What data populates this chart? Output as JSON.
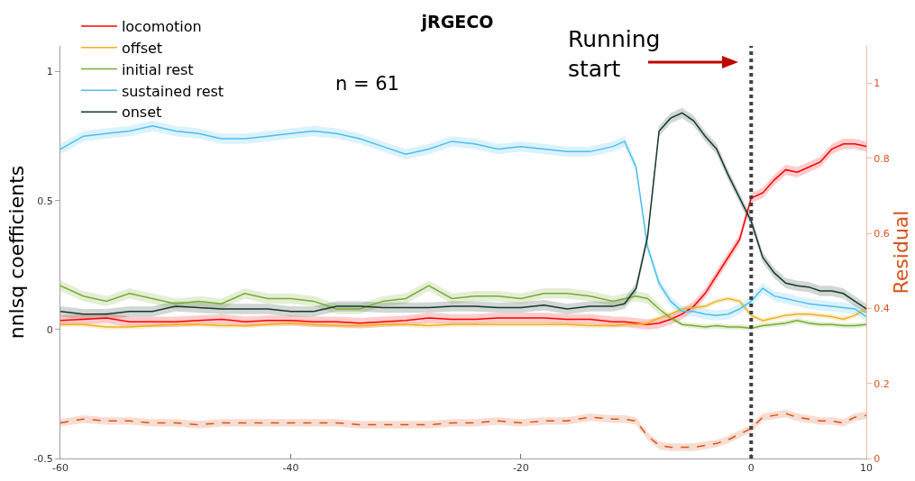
{
  "chart_data": {
    "type": "line",
    "title": "jRGECO",
    "ylabel": "nnlsq coefficients",
    "y2label": "Residual",
    "annotations": [
      "n = 61",
      "Running start"
    ],
    "x": [
      -60,
      -58,
      -56,
      -54,
      -52,
      -50,
      -48,
      -46,
      -44,
      -42,
      -40,
      -38,
      -36,
      -34,
      -32,
      -30,
      -28,
      -26,
      -24,
      -22,
      -20,
      -18,
      -16,
      -14,
      -12,
      -11,
      -10,
      -9,
      -8,
      -7,
      -6,
      -5,
      -4,
      -3,
      -2,
      -1,
      0,
      1,
      2,
      3,
      4,
      5,
      6,
      7,
      8,
      9,
      10
    ],
    "xlim": [
      -60,
      10
    ],
    "xticks": [
      -60,
      -40,
      -20,
      0,
      10
    ],
    "ylim": [
      -0.5,
      1.1
    ],
    "yticks": [
      -0.5,
      0,
      0.5,
      1
    ],
    "y2lim": [
      0,
      1.1
    ],
    "y2ticks": [
      0,
      0.2,
      0.4,
      0.6,
      0.8,
      1
    ],
    "legend": "top left",
    "ref_lines": [
      {
        "axis": "x",
        "value": 0,
        "color": "#404040",
        "line_style": "dotted"
      }
    ],
    "series": [
      {
        "name": "locomotion",
        "color": "#ff0000",
        "values": [
          0.035,
          0.04,
          0.045,
          0.03,
          0.03,
          0.03,
          0.035,
          0.04,
          0.03,
          0.035,
          0.035,
          0.03,
          0.03,
          0.025,
          0.03,
          0.035,
          0.045,
          0.04,
          0.04,
          0.045,
          0.045,
          0.045,
          0.04,
          0.04,
          0.03,
          0.03,
          0.025,
          0.02,
          0.025,
          0.04,
          0.06,
          0.09,
          0.14,
          0.21,
          0.28,
          0.35,
          0.51,
          0.53,
          0.58,
          0.62,
          0.61,
          0.63,
          0.65,
          0.7,
          0.72,
          0.72,
          0.71
        ],
        "lower": [
          0.015,
          0.02,
          0.025,
          0.01,
          0.01,
          0.01,
          0.015,
          0.02,
          0.01,
          0.015,
          0.015,
          0.01,
          0.01,
          0.005,
          0.01,
          0.015,
          0.025,
          0.02,
          0.02,
          0.025,
          0.025,
          0.025,
          0.02,
          0.02,
          0.01,
          0.01,
          0.005,
          0,
          0.005,
          0.02,
          0.04,
          0.07,
          0.12,
          0.19,
          0.26,
          0.33,
          0.49,
          0.51,
          0.56,
          0.6,
          0.59,
          0.61,
          0.63,
          0.68,
          0.7,
          0.7,
          0.69
        ],
        "upper": [
          0.055,
          0.06,
          0.065,
          0.05,
          0.05,
          0.05,
          0.055,
          0.06,
          0.05,
          0.055,
          0.055,
          0.05,
          0.05,
          0.045,
          0.05,
          0.055,
          0.065,
          0.06,
          0.06,
          0.065,
          0.065,
          0.065,
          0.06,
          0.06,
          0.05,
          0.05,
          0.045,
          0.04,
          0.045,
          0.06,
          0.08,
          0.11,
          0.16,
          0.23,
          0.3,
          0.37,
          0.53,
          0.55,
          0.6,
          0.64,
          0.63,
          0.65,
          0.67,
          0.72,
          0.74,
          0.74,
          0.73
        ]
      },
      {
        "name": "offset",
        "color": "#edb120",
        "values": [
          0.02,
          0.02,
          0.01,
          0.01,
          0.015,
          0.02,
          0.02,
          0.015,
          0.015,
          0.02,
          0.025,
          0.02,
          0.015,
          0.015,
          0.02,
          0.02,
          0.015,
          0.02,
          0.02,
          0.02,
          0.02,
          0.02,
          0.02,
          0.015,
          0.015,
          0.02,
          0.02,
          0.025,
          0.045,
          0.06,
          0.08,
          0.085,
          0.09,
          0.11,
          0.12,
          0.11,
          0.055,
          0.035,
          0.045,
          0.055,
          0.06,
          0.06,
          0.055,
          0.05,
          0.04,
          0.055,
          0.08
        ],
        "lower": [
          0.01,
          0.01,
          0,
          0,
          0.005,
          0.01,
          0.01,
          0.005,
          0.005,
          0.01,
          0.015,
          0.01,
          0.005,
          0.005,
          0.01,
          0.01,
          0.005,
          0.01,
          0.01,
          0.01,
          0.01,
          0.01,
          0.01,
          0.005,
          0.005,
          0.01,
          0.01,
          0.015,
          0.035,
          0.05,
          0.07,
          0.075,
          0.08,
          0.1,
          0.11,
          0.1,
          0.045,
          0.025,
          0.035,
          0.045,
          0.05,
          0.05,
          0.045,
          0.04,
          0.03,
          0.045,
          0.07
        ],
        "upper": [
          0.03,
          0.03,
          0.02,
          0.02,
          0.025,
          0.03,
          0.03,
          0.025,
          0.025,
          0.03,
          0.035,
          0.03,
          0.025,
          0.025,
          0.03,
          0.03,
          0.025,
          0.03,
          0.03,
          0.03,
          0.03,
          0.03,
          0.03,
          0.025,
          0.025,
          0.03,
          0.03,
          0.035,
          0.055,
          0.07,
          0.09,
          0.095,
          0.1,
          0.12,
          0.13,
          0.12,
          0.065,
          0.045,
          0.055,
          0.065,
          0.07,
          0.07,
          0.065,
          0.06,
          0.05,
          0.065,
          0.09
        ]
      },
      {
        "name": "initial rest",
        "color": "#77ac30",
        "values": [
          0.17,
          0.13,
          0.11,
          0.14,
          0.12,
          0.1,
          0.11,
          0.1,
          0.14,
          0.12,
          0.12,
          0.11,
          0.08,
          0.08,
          0.11,
          0.12,
          0.17,
          0.12,
          0.13,
          0.13,
          0.12,
          0.14,
          0.14,
          0.13,
          0.11,
          0.12,
          0.13,
          0.12,
          0.08,
          0.045,
          0.02,
          0.015,
          0.01,
          0.015,
          0.01,
          0.01,
          0.005,
          0.015,
          0.02,
          0.025,
          0.035,
          0.025,
          0.02,
          0.02,
          0.015,
          0.015,
          0.02
        ],
        "lower": [
          0.15,
          0.11,
          0.09,
          0.12,
          0.1,
          0.08,
          0.09,
          0.08,
          0.12,
          0.1,
          0.1,
          0.09,
          0.06,
          0.06,
          0.09,
          0.1,
          0.15,
          0.1,
          0.11,
          0.11,
          0.1,
          0.12,
          0.12,
          0.11,
          0.09,
          0.1,
          0.11,
          0.1,
          0.06,
          0.035,
          0.01,
          0.005,
          0,
          0.005,
          0,
          0,
          -0.005,
          0.005,
          0.01,
          0.015,
          0.025,
          0.015,
          0.01,
          0.01,
          0.005,
          0.005,
          0.01
        ],
        "upper": [
          0.19,
          0.15,
          0.13,
          0.16,
          0.14,
          0.12,
          0.13,
          0.12,
          0.16,
          0.14,
          0.14,
          0.13,
          0.1,
          0.1,
          0.13,
          0.14,
          0.19,
          0.14,
          0.15,
          0.15,
          0.14,
          0.16,
          0.16,
          0.15,
          0.13,
          0.14,
          0.15,
          0.14,
          0.1,
          0.055,
          0.03,
          0.025,
          0.02,
          0.025,
          0.02,
          0.02,
          0.015,
          0.025,
          0.03,
          0.035,
          0.045,
          0.035,
          0.03,
          0.03,
          0.025,
          0.025,
          0.03
        ]
      },
      {
        "name": "sustained rest",
        "color": "#4dbeee",
        "values": [
          0.7,
          0.75,
          0.76,
          0.77,
          0.79,
          0.77,
          0.76,
          0.74,
          0.74,
          0.75,
          0.76,
          0.77,
          0.76,
          0.74,
          0.71,
          0.68,
          0.7,
          0.73,
          0.72,
          0.7,
          0.71,
          0.7,
          0.69,
          0.69,
          0.71,
          0.73,
          0.63,
          0.32,
          0.18,
          0.11,
          0.07,
          0.07,
          0.06,
          0.055,
          0.06,
          0.08,
          0.11,
          0.16,
          0.13,
          0.12,
          0.11,
          0.1,
          0.095,
          0.09,
          0.085,
          0.08,
          0.05
        ],
        "lower": [
          0.68,
          0.73,
          0.74,
          0.75,
          0.77,
          0.75,
          0.74,
          0.72,
          0.72,
          0.73,
          0.74,
          0.75,
          0.74,
          0.72,
          0.69,
          0.66,
          0.68,
          0.71,
          0.7,
          0.68,
          0.69,
          0.68,
          0.67,
          0.67,
          0.69,
          0.71,
          0.61,
          0.3,
          0.16,
          0.09,
          0.05,
          0.05,
          0.04,
          0.035,
          0.04,
          0.06,
          0.09,
          0.14,
          0.11,
          0.1,
          0.09,
          0.08,
          0.075,
          0.07,
          0.065,
          0.06,
          0.03
        ],
        "upper": [
          0.72,
          0.77,
          0.78,
          0.79,
          0.81,
          0.79,
          0.78,
          0.76,
          0.76,
          0.77,
          0.78,
          0.79,
          0.78,
          0.76,
          0.73,
          0.7,
          0.72,
          0.75,
          0.74,
          0.72,
          0.73,
          0.72,
          0.71,
          0.71,
          0.73,
          0.75,
          0.65,
          0.34,
          0.2,
          0.13,
          0.09,
          0.09,
          0.08,
          0.075,
          0.08,
          0.1,
          0.13,
          0.18,
          0.15,
          0.14,
          0.13,
          0.12,
          0.115,
          0.11,
          0.105,
          0.1,
          0.07
        ]
      },
      {
        "name": "onset",
        "color": "#17382a",
        "values": [
          0.07,
          0.06,
          0.06,
          0.07,
          0.07,
          0.09,
          0.085,
          0.08,
          0.08,
          0.08,
          0.07,
          0.07,
          0.09,
          0.09,
          0.085,
          0.085,
          0.085,
          0.09,
          0.09,
          0.085,
          0.085,
          0.095,
          0.08,
          0.09,
          0.09,
          0.1,
          0.16,
          0.36,
          0.77,
          0.82,
          0.84,
          0.81,
          0.75,
          0.7,
          0.6,
          0.51,
          0.42,
          0.28,
          0.22,
          0.18,
          0.17,
          0.165,
          0.15,
          0.15,
          0.14,
          0.11,
          0.08
        ],
        "lower": [
          0.05,
          0.04,
          0.04,
          0.05,
          0.05,
          0.07,
          0.065,
          0.06,
          0.06,
          0.06,
          0.05,
          0.05,
          0.07,
          0.07,
          0.065,
          0.065,
          0.065,
          0.07,
          0.07,
          0.065,
          0.065,
          0.075,
          0.06,
          0.07,
          0.07,
          0.08,
          0.14,
          0.34,
          0.75,
          0.8,
          0.82,
          0.79,
          0.73,
          0.68,
          0.58,
          0.49,
          0.4,
          0.26,
          0.2,
          0.16,
          0.15,
          0.145,
          0.13,
          0.13,
          0.12,
          0.09,
          0.06
        ],
        "upper": [
          0.09,
          0.08,
          0.08,
          0.09,
          0.09,
          0.11,
          0.105,
          0.1,
          0.1,
          0.1,
          0.09,
          0.09,
          0.11,
          0.11,
          0.105,
          0.105,
          0.105,
          0.11,
          0.11,
          0.105,
          0.105,
          0.115,
          0.1,
          0.11,
          0.11,
          0.12,
          0.18,
          0.38,
          0.79,
          0.84,
          0.86,
          0.83,
          0.77,
          0.72,
          0.62,
          0.53,
          0.44,
          0.3,
          0.24,
          0.2,
          0.19,
          0.185,
          0.17,
          0.17,
          0.16,
          0.13,
          0.1
        ]
      },
      {
        "color": "#d95319",
        "axis": "y2",
        "line_style": "dashed",
        "values": [
          0.095,
          0.105,
          0.1,
          0.1,
          0.095,
          0.095,
          0.09,
          0.095,
          0.095,
          0.095,
          0.095,
          0.095,
          0.095,
          0.09,
          0.09,
          0.09,
          0.09,
          0.095,
          0.095,
          0.1,
          0.095,
          0.1,
          0.1,
          0.11,
          0.105,
          0.105,
          0.1,
          0.06,
          0.035,
          0.03,
          0.03,
          0.03,
          0.035,
          0.04,
          0.05,
          0.065,
          0.08,
          0.11,
          0.115,
          0.12,
          0.11,
          0.105,
          0.1,
          0.1,
          0.095,
          0.11,
          0.115
        ],
        "lower": [
          0.085,
          0.095,
          0.09,
          0.09,
          0.085,
          0.085,
          0.08,
          0.085,
          0.085,
          0.085,
          0.085,
          0.085,
          0.085,
          0.08,
          0.08,
          0.08,
          0.08,
          0.085,
          0.085,
          0.09,
          0.085,
          0.09,
          0.09,
          0.1,
          0.095,
          0.095,
          0.09,
          0.05,
          0.025,
          0.02,
          0.02,
          0.02,
          0.025,
          0.03,
          0.04,
          0.055,
          0.07,
          0.1,
          0.105,
          0.11,
          0.1,
          0.095,
          0.09,
          0.09,
          0.085,
          0.1,
          0.105
        ],
        "upper": [
          0.105,
          0.115,
          0.11,
          0.11,
          0.105,
          0.105,
          0.1,
          0.105,
          0.105,
          0.105,
          0.105,
          0.105,
          0.105,
          0.1,
          0.1,
          0.1,
          0.1,
          0.105,
          0.105,
          0.11,
          0.105,
          0.11,
          0.11,
          0.12,
          0.115,
          0.115,
          0.11,
          0.07,
          0.045,
          0.04,
          0.04,
          0.04,
          0.045,
          0.05,
          0.06,
          0.075,
          0.09,
          0.12,
          0.125,
          0.13,
          0.12,
          0.115,
          0.11,
          0.11,
          0.105,
          0.12,
          0.125
        ]
      }
    ]
  }
}
